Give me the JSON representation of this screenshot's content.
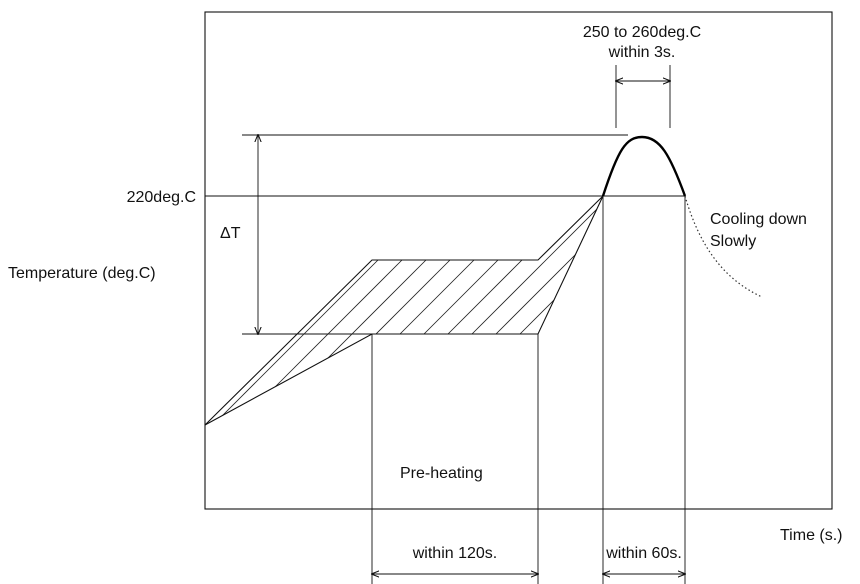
{
  "labels": {
    "peak_range": "250 to 260deg.C",
    "peak_time": "within 3s.",
    "threshold": "220deg.C",
    "delta_t": "ΔT",
    "y_axis": "Temperature (deg.C)",
    "cooling_line1": "Cooling down",
    "cooling_line2": "Slowly",
    "preheat": "Pre-heating",
    "x_axis": "Time (s.)",
    "preheat_time": "within 120s.",
    "above_220_time": "within 60s."
  }
}
